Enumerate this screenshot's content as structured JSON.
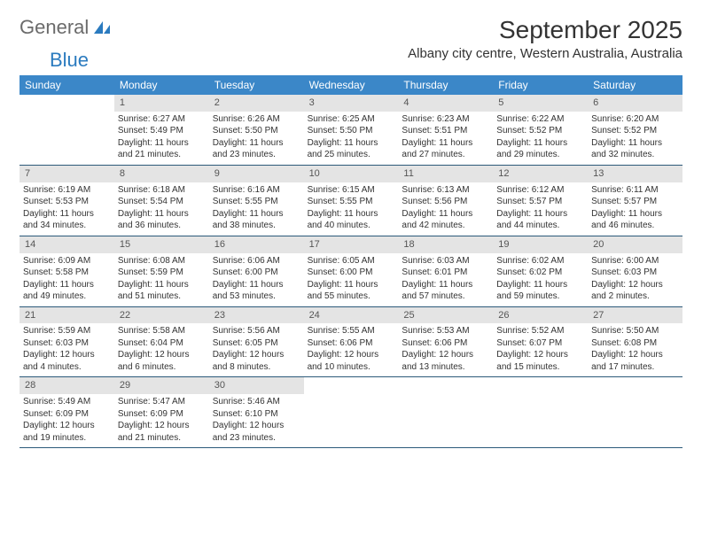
{
  "logo": {
    "text1": "General",
    "text2": "Blue"
  },
  "header": {
    "month_title": "September 2025",
    "location": "Albany city centre, Western Australia, Australia"
  },
  "colors": {
    "header_bg": "#3b87c8",
    "header_text": "#ffffff",
    "daynum_bg": "#e4e4e4",
    "daynum_text": "#555555",
    "border": "#2c5a7a",
    "logo_gray": "#6b6b6b",
    "logo_blue": "#2b7bbf"
  },
  "day_names": [
    "Sunday",
    "Monday",
    "Tuesday",
    "Wednesday",
    "Thursday",
    "Friday",
    "Saturday"
  ],
  "weeks": [
    [
      {
        "n": "",
        "sr": "",
        "ss": "",
        "dl": ""
      },
      {
        "n": "1",
        "sr": "Sunrise: 6:27 AM",
        "ss": "Sunset: 5:49 PM",
        "dl": "Daylight: 11 hours and 21 minutes."
      },
      {
        "n": "2",
        "sr": "Sunrise: 6:26 AM",
        "ss": "Sunset: 5:50 PM",
        "dl": "Daylight: 11 hours and 23 minutes."
      },
      {
        "n": "3",
        "sr": "Sunrise: 6:25 AM",
        "ss": "Sunset: 5:50 PM",
        "dl": "Daylight: 11 hours and 25 minutes."
      },
      {
        "n": "4",
        "sr": "Sunrise: 6:23 AM",
        "ss": "Sunset: 5:51 PM",
        "dl": "Daylight: 11 hours and 27 minutes."
      },
      {
        "n": "5",
        "sr": "Sunrise: 6:22 AM",
        "ss": "Sunset: 5:52 PM",
        "dl": "Daylight: 11 hours and 29 minutes."
      },
      {
        "n": "6",
        "sr": "Sunrise: 6:20 AM",
        "ss": "Sunset: 5:52 PM",
        "dl": "Daylight: 11 hours and 32 minutes."
      }
    ],
    [
      {
        "n": "7",
        "sr": "Sunrise: 6:19 AM",
        "ss": "Sunset: 5:53 PM",
        "dl": "Daylight: 11 hours and 34 minutes."
      },
      {
        "n": "8",
        "sr": "Sunrise: 6:18 AM",
        "ss": "Sunset: 5:54 PM",
        "dl": "Daylight: 11 hours and 36 minutes."
      },
      {
        "n": "9",
        "sr": "Sunrise: 6:16 AM",
        "ss": "Sunset: 5:55 PM",
        "dl": "Daylight: 11 hours and 38 minutes."
      },
      {
        "n": "10",
        "sr": "Sunrise: 6:15 AM",
        "ss": "Sunset: 5:55 PM",
        "dl": "Daylight: 11 hours and 40 minutes."
      },
      {
        "n": "11",
        "sr": "Sunrise: 6:13 AM",
        "ss": "Sunset: 5:56 PM",
        "dl": "Daylight: 11 hours and 42 minutes."
      },
      {
        "n": "12",
        "sr": "Sunrise: 6:12 AM",
        "ss": "Sunset: 5:57 PM",
        "dl": "Daylight: 11 hours and 44 minutes."
      },
      {
        "n": "13",
        "sr": "Sunrise: 6:11 AM",
        "ss": "Sunset: 5:57 PM",
        "dl": "Daylight: 11 hours and 46 minutes."
      }
    ],
    [
      {
        "n": "14",
        "sr": "Sunrise: 6:09 AM",
        "ss": "Sunset: 5:58 PM",
        "dl": "Daylight: 11 hours and 49 minutes."
      },
      {
        "n": "15",
        "sr": "Sunrise: 6:08 AM",
        "ss": "Sunset: 5:59 PM",
        "dl": "Daylight: 11 hours and 51 minutes."
      },
      {
        "n": "16",
        "sr": "Sunrise: 6:06 AM",
        "ss": "Sunset: 6:00 PM",
        "dl": "Daylight: 11 hours and 53 minutes."
      },
      {
        "n": "17",
        "sr": "Sunrise: 6:05 AM",
        "ss": "Sunset: 6:00 PM",
        "dl": "Daylight: 11 hours and 55 minutes."
      },
      {
        "n": "18",
        "sr": "Sunrise: 6:03 AM",
        "ss": "Sunset: 6:01 PM",
        "dl": "Daylight: 11 hours and 57 minutes."
      },
      {
        "n": "19",
        "sr": "Sunrise: 6:02 AM",
        "ss": "Sunset: 6:02 PM",
        "dl": "Daylight: 11 hours and 59 minutes."
      },
      {
        "n": "20",
        "sr": "Sunrise: 6:00 AM",
        "ss": "Sunset: 6:03 PM",
        "dl": "Daylight: 12 hours and 2 minutes."
      }
    ],
    [
      {
        "n": "21",
        "sr": "Sunrise: 5:59 AM",
        "ss": "Sunset: 6:03 PM",
        "dl": "Daylight: 12 hours and 4 minutes."
      },
      {
        "n": "22",
        "sr": "Sunrise: 5:58 AM",
        "ss": "Sunset: 6:04 PM",
        "dl": "Daylight: 12 hours and 6 minutes."
      },
      {
        "n": "23",
        "sr": "Sunrise: 5:56 AM",
        "ss": "Sunset: 6:05 PM",
        "dl": "Daylight: 12 hours and 8 minutes."
      },
      {
        "n": "24",
        "sr": "Sunrise: 5:55 AM",
        "ss": "Sunset: 6:06 PM",
        "dl": "Daylight: 12 hours and 10 minutes."
      },
      {
        "n": "25",
        "sr": "Sunrise: 5:53 AM",
        "ss": "Sunset: 6:06 PM",
        "dl": "Daylight: 12 hours and 13 minutes."
      },
      {
        "n": "26",
        "sr": "Sunrise: 5:52 AM",
        "ss": "Sunset: 6:07 PM",
        "dl": "Daylight: 12 hours and 15 minutes."
      },
      {
        "n": "27",
        "sr": "Sunrise: 5:50 AM",
        "ss": "Sunset: 6:08 PM",
        "dl": "Daylight: 12 hours and 17 minutes."
      }
    ],
    [
      {
        "n": "28",
        "sr": "Sunrise: 5:49 AM",
        "ss": "Sunset: 6:09 PM",
        "dl": "Daylight: 12 hours and 19 minutes."
      },
      {
        "n": "29",
        "sr": "Sunrise: 5:47 AM",
        "ss": "Sunset: 6:09 PM",
        "dl": "Daylight: 12 hours and 21 minutes."
      },
      {
        "n": "30",
        "sr": "Sunrise: 5:46 AM",
        "ss": "Sunset: 6:10 PM",
        "dl": "Daylight: 12 hours and 23 minutes."
      },
      {
        "n": "",
        "sr": "",
        "ss": "",
        "dl": ""
      },
      {
        "n": "",
        "sr": "",
        "ss": "",
        "dl": ""
      },
      {
        "n": "",
        "sr": "",
        "ss": "",
        "dl": ""
      },
      {
        "n": "",
        "sr": "",
        "ss": "",
        "dl": ""
      }
    ]
  ]
}
